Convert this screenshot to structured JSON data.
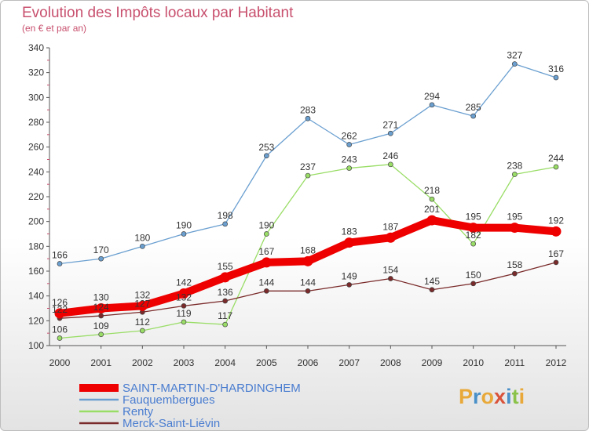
{
  "header": {
    "title": "Evolution des Impôts locaux par Habitant",
    "subtitle": "(en € et par an)"
  },
  "logo": {
    "text": "Proxiti",
    "colors": [
      "#e8a93a",
      "#4a90c8",
      "#e8a93a",
      "#d9533b",
      "#4a90c8",
      "#8bc34a",
      "#e8a93a"
    ]
  },
  "chart_data": {
    "type": "line",
    "title": "Evolution des Impôts locaux par Habitant",
    "subtitle": "(en € et par an)",
    "x": [
      "2000",
      "2001",
      "2002",
      "2003",
      "2004",
      "2005",
      "2006",
      "2007",
      "2008",
      "2009",
      "2010",
      "2011",
      "2012"
    ],
    "ylim": [
      100,
      340
    ],
    "yticks": [
      100,
      120,
      140,
      160,
      180,
      200,
      220,
      240,
      260,
      280,
      300,
      320,
      340
    ],
    "grid": false,
    "legend": "bottom-left",
    "series": [
      {
        "name": "SAINT-MARTIN-D'HARDINGHEM",
        "color": "#ee0000",
        "bold": true,
        "values": [
          126,
          130,
          132,
          142,
          155,
          167,
          168,
          183,
          187,
          201,
          195,
          195,
          192
        ]
      },
      {
        "name": "Fauquembergues",
        "color": "#6a9fd0",
        "bold": false,
        "values": [
          166,
          170,
          180,
          190,
          198,
          253,
          283,
          262,
          271,
          294,
          285,
          327,
          316
        ]
      },
      {
        "name": "Renty",
        "color": "#99dd66",
        "bold": false,
        "values": [
          106,
          109,
          112,
          119,
          117,
          190,
          237,
          243,
          246,
          218,
          182,
          238,
          244
        ]
      },
      {
        "name": "Merck-Saint-Liévin",
        "color": "#7a2a2a",
        "bold": false,
        "values": [
          122,
          124,
          127,
          132,
          136,
          144,
          144,
          149,
          154,
          145,
          150,
          158,
          167
        ]
      }
    ]
  }
}
